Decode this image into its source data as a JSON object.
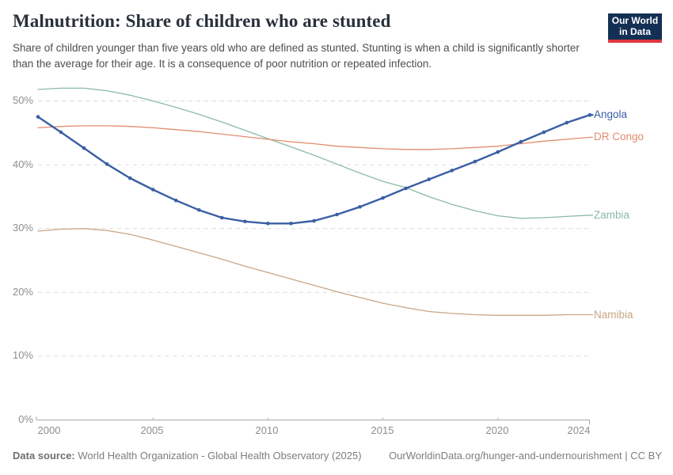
{
  "header": {
    "title": "Malnutrition: Share of children who are stunted",
    "subtitle": "Share of children younger than five years old who are defined as stunted. Stunting is when a child is significantly shorter than the average for their age. It is a consequence of poor nutrition or repeated infection.",
    "logo": {
      "line1": "Our World",
      "line2": "in Data",
      "bg_color": "#142f54",
      "bar_color": "#e0383e"
    }
  },
  "chart_data": {
    "type": "line",
    "title": "Malnutrition: Share of children who are stunted",
    "xlabel": "",
    "ylabel": "",
    "grid": "horizontal-dashed",
    "legend_position": "right-end-labels",
    "xlim": [
      2000,
      2024
    ],
    "ylim": [
      0,
      52.5
    ],
    "xticks": [
      "2000",
      "2005",
      "2010",
      "2015",
      "2020",
      "2024"
    ],
    "xtick_years": [
      2000,
      2005,
      2010,
      2015,
      2020,
      2024
    ],
    "yticks": [
      "0%",
      "10%",
      "20%",
      "30%",
      "40%",
      "50%"
    ],
    "ytick_values": [
      0,
      10,
      20,
      30,
      40,
      50
    ],
    "x": [
      2000,
      2001,
      2002,
      2003,
      2004,
      2005,
      2006,
      2007,
      2008,
      2009,
      2010,
      2011,
      2012,
      2013,
      2014,
      2015,
      2016,
      2017,
      2018,
      2019,
      2020,
      2021,
      2022,
      2023,
      2024
    ],
    "series": [
      {
        "name": "Angola",
        "color": "#3a5fa4",
        "marker": true,
        "line_width": 2.4,
        "values": [
          47.5,
          45.1,
          42.6,
          40.1,
          37.9,
          36.1,
          34.4,
          32.9,
          31.7,
          31.1,
          30.8,
          30.8,
          31.2,
          32.2,
          33.4,
          34.8,
          36.3,
          37.7,
          39.1,
          40.5,
          42.0,
          43.6,
          45.1,
          46.6,
          47.8
        ]
      },
      {
        "name": "DR Congo",
        "color": "#e18c6f",
        "marker": false,
        "line_width": 1.3,
        "values": [
          45.8,
          46.0,
          46.1,
          46.1,
          46.0,
          45.8,
          45.5,
          45.2,
          44.8,
          44.4,
          44.0,
          43.6,
          43.3,
          42.9,
          42.7,
          42.5,
          42.4,
          42.4,
          42.5,
          42.7,
          42.9,
          43.3,
          43.7,
          44.0,
          44.3
        ]
      },
      {
        "name": "Zambia",
        "color": "#8cbaa7",
        "marker": false,
        "line_width": 1.3,
        "values": [
          51.8,
          52.0,
          52.0,
          51.6,
          50.9,
          50.0,
          49.0,
          47.9,
          46.7,
          45.4,
          44.1,
          42.8,
          41.5,
          40.1,
          38.7,
          37.4,
          36.4,
          35.0,
          33.8,
          32.8,
          32.0,
          31.6,
          31.7,
          31.9,
          32.1
        ]
      },
      {
        "name": "Namibia",
        "color": "#c9a685",
        "marker": false,
        "line_width": 1.3,
        "values": [
          29.6,
          29.9,
          30.0,
          29.7,
          29.1,
          28.2,
          27.2,
          26.2,
          25.2,
          24.1,
          23.1,
          22.1,
          21.1,
          20.1,
          19.2,
          18.3,
          17.6,
          17.0,
          16.7,
          16.5,
          16.4,
          16.4,
          16.4,
          16.5,
          16.5
        ]
      }
    ]
  },
  "footer": {
    "source_label": "Data source:",
    "source_text": "World Health Organization - Global Health Observatory (2025)",
    "attribution": "OurWorldinData.org/hunger-and-undernourishment | CC BY"
  }
}
